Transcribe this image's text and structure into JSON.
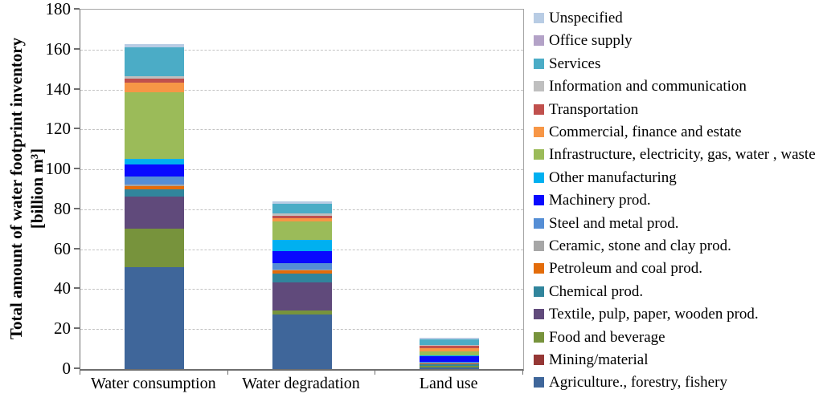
{
  "chart_data": {
    "type": "bar",
    "stacked": true,
    "title": "",
    "ylabel_line1": "Total amount of water footprint inventory",
    "ylabel_line2": "[billion m³]",
    "categories": [
      "Water consumption",
      "Water degradation",
      "Land use"
    ],
    "ylim": [
      0,
      180
    ],
    "yticks": [
      "0",
      "20",
      "40",
      "60",
      "80",
      "100",
      "120",
      "140",
      "160",
      "180"
    ],
    "grid": "horizontal dashed every 20",
    "legend_position": "right",
    "legend_order": "reverse of stacking (top segment listed first)",
    "series": [
      {
        "name": "Agriculture., forestry, fishery",
        "color": "#3f669a",
        "values": [
          51,
          27.5,
          0.8
        ]
      },
      {
        "name": "Mining/material",
        "color": "#953735",
        "values": [
          0,
          0,
          0
        ]
      },
      {
        "name": "Food and beverage",
        "color": "#77933c",
        "values": [
          19.5,
          2,
          1
        ]
      },
      {
        "name": "Textile, pulp, paper, wooden prod.",
        "color": "#604a7b",
        "values": [
          16,
          14,
          0
        ]
      },
      {
        "name": "Chemical prod.",
        "color": "#31859c",
        "values": [
          3.5,
          4.5,
          0.6
        ]
      },
      {
        "name": "Petroleum and coal prod.",
        "color": "#e36c0a",
        "values": [
          1.5,
          1.4,
          0.5
        ]
      },
      {
        "name": "Ceramic, stone and clay prod.",
        "color": "#a6a6a6",
        "values": [
          0.8,
          0.3,
          0
        ]
      },
      {
        "name": "Steel and metal prod.",
        "color": "#558ed5",
        "values": [
          4,
          3.5,
          0.7
        ]
      },
      {
        "name": "Machinery prod.",
        "color": "#0909ff",
        "values": [
          6,
          5.8,
          2.8
        ]
      },
      {
        "name": "Other manufacturing",
        "color": "#00b0f0",
        "values": [
          3,
          5.8,
          0.4
        ]
      },
      {
        "name": "Infrastructure, electricity, gas, water , waste",
        "color": "#9bbb59",
        "values": [
          33.5,
          9,
          2
        ]
      },
      {
        "name": "Commercial, finance and estate",
        "color": "#f79646",
        "values": [
          4.5,
          1.8,
          1.7
        ]
      },
      {
        "name": "Transportation",
        "color": "#c0504d",
        "values": [
          2,
          1,
          1.4
        ]
      },
      {
        "name": "Information and communication",
        "color": "#bfbfbf",
        "values": [
          1.5,
          1.2,
          0.3
        ]
      },
      {
        "name": "Services",
        "color": "#4bacc6",
        "values": [
          14.5,
          5,
          2.8
        ]
      },
      {
        "name": "Office supply",
        "color": "#b3a2c7",
        "values": [
          0,
          0,
          0
        ]
      },
      {
        "name": "Unspecified",
        "color": "#b8cce4",
        "values": [
          1.5,
          1,
          0.6
        ]
      }
    ]
  }
}
